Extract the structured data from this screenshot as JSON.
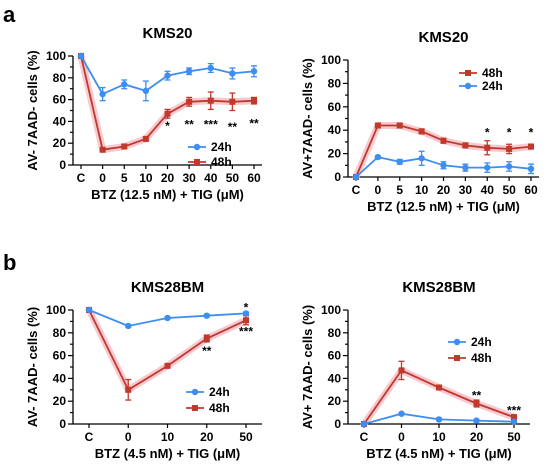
{
  "panel_labels": [
    "a",
    "b"
  ],
  "colors": {
    "24h": "#3d8ef0",
    "48h": "#c0392b",
    "glow": "#f6bcc4"
  },
  "chart_data": [
    {
      "type": "line",
      "title": "KMS20",
      "xlabel": "BTZ (12.5 nM) + TIG (μM)",
      "ylabel": "AV- 7AAD- cells (%)",
      "categories": [
        "C",
        "0",
        "5",
        "10",
        "20",
        "30",
        "40",
        "50",
        "60"
      ],
      "ylim": [
        0,
        100
      ],
      "yticks": [
        0,
        10,
        20,
        30,
        40,
        50,
        60,
        70,
        80,
        90,
        100
      ],
      "legend_position": "bottom-right",
      "legend_order": [
        "24h",
        "48h"
      ],
      "series": [
        {
          "name": "24h",
          "color": "#3d8ef0",
          "marker": "circle",
          "values": [
            100,
            65,
            74,
            68,
            82,
            86,
            89,
            84,
            86
          ],
          "errors": [
            0,
            6,
            4,
            9,
            4,
            3,
            4,
            5,
            5
          ]
        },
        {
          "name": "48h",
          "color": "#c0392b",
          "marker": "square",
          "values": [
            100,
            14,
            17,
            24,
            47,
            58,
            59,
            58,
            59
          ],
          "errors": [
            0,
            1,
            2,
            2,
            4,
            4,
            8,
            8,
            3
          ]
        }
      ],
      "annotations": [
        {
          "x": "20",
          "y": 36,
          "text": "*"
        },
        {
          "x": "30",
          "y": 37,
          "text": "**"
        },
        {
          "x": "40",
          "y": 37,
          "text": "***"
        },
        {
          "x": "50",
          "y": 35,
          "text": "**"
        },
        {
          "x": "60",
          "y": 38,
          "text": "**"
        }
      ]
    },
    {
      "type": "line",
      "title": "KMS20",
      "xlabel": "BTZ (12.5 nM) + TIG (μM)",
      "ylabel": "AV+7AAD- cells (%)",
      "categories": [
        "C",
        "0",
        "5",
        "10",
        "20",
        "30",
        "40",
        "50",
        "60"
      ],
      "ylim": [
        0,
        100
      ],
      "yticks": [
        0,
        10,
        20,
        30,
        40,
        50,
        60,
        70,
        80,
        90,
        100
      ],
      "legend_position": "top-left",
      "legend_order": [
        "48h",
        "24h"
      ],
      "series": [
        {
          "name": "24h",
          "color": "#3d8ef0",
          "marker": "circle",
          "values": [
            0,
            17,
            13,
            16,
            10,
            8,
            8,
            9,
            7
          ],
          "errors": [
            0,
            1,
            2,
            6,
            3,
            3,
            4,
            4,
            4
          ]
        },
        {
          "name": "48h",
          "color": "#c0392b",
          "marker": "square",
          "values": [
            0,
            44,
            44,
            39,
            31,
            27,
            25,
            24,
            26
          ],
          "errors": [
            0,
            2,
            2,
            2,
            2,
            2,
            6,
            4,
            2
          ]
        }
      ],
      "annotations": [
        {
          "x": "40",
          "y": 38,
          "text": "*"
        },
        {
          "x": "50",
          "y": 38,
          "text": "*"
        },
        {
          "x": "60",
          "y": 38,
          "text": "*"
        }
      ]
    },
    {
      "type": "line",
      "title": "KMS28BM",
      "xlabel": "BTZ (4.5 nM) + TIG (μM)",
      "ylabel": "AV- 7AAD- cells (%)",
      "categories": [
        "C",
        "0",
        "10",
        "20",
        "50"
      ],
      "ylim": [
        0,
        100
      ],
      "yticks": [
        0,
        10,
        20,
        30,
        40,
        50,
        60,
        70,
        80,
        90,
        100
      ],
      "legend_position": "bottom-right",
      "legend_order": [
        "24h",
        "48h"
      ],
      "series": [
        {
          "name": "24h",
          "color": "#3d8ef0",
          "marker": "circle",
          "values": [
            100,
            86,
            93,
            95,
            97
          ],
          "errors": [
            0,
            1,
            1,
            1,
            1
          ]
        },
        {
          "name": "48h",
          "color": "#c0392b",
          "marker": "square",
          "values": [
            100,
            30,
            51,
            75,
            91
          ],
          "errors": [
            0,
            9,
            1,
            3,
            4
          ]
        }
      ],
      "annotations": [
        {
          "x": "20",
          "y": 64,
          "text": "**"
        },
        {
          "x": "50",
          "y": 81,
          "text": "***"
        },
        {
          "x": "50",
          "y": 102,
          "text": "*"
        }
      ]
    },
    {
      "type": "line",
      "title": "KMS28BM",
      "xlabel": "BTZ (4.5 nM) + TIG (μM)",
      "ylabel": "AV+ 7AAD- cells (%)",
      "categories": [
        "C",
        "0",
        "10",
        "20",
        "50"
      ],
      "ylim": [
        0,
        100
      ],
      "yticks": [
        0,
        10,
        20,
        30,
        40,
        50,
        60,
        70,
        80,
        90,
        100
      ],
      "legend_position": "top-right",
      "legend_order": [
        "24h",
        "48h"
      ],
      "series": [
        {
          "name": "24h",
          "color": "#3d8ef0",
          "marker": "circle",
          "values": [
            0,
            9,
            4,
            3,
            2
          ],
          "errors": [
            0,
            1,
            1,
            1,
            1
          ]
        },
        {
          "name": "48h",
          "color": "#c0392b",
          "marker": "square",
          "values": [
            0,
            47,
            32,
            18,
            6
          ],
          "errors": [
            0,
            8,
            2,
            3,
            2
          ]
        }
      ],
      "annotations": [
        {
          "x": "20",
          "y": 25,
          "text": "**"
        },
        {
          "x": "50",
          "y": 12,
          "text": "***"
        }
      ]
    }
  ]
}
